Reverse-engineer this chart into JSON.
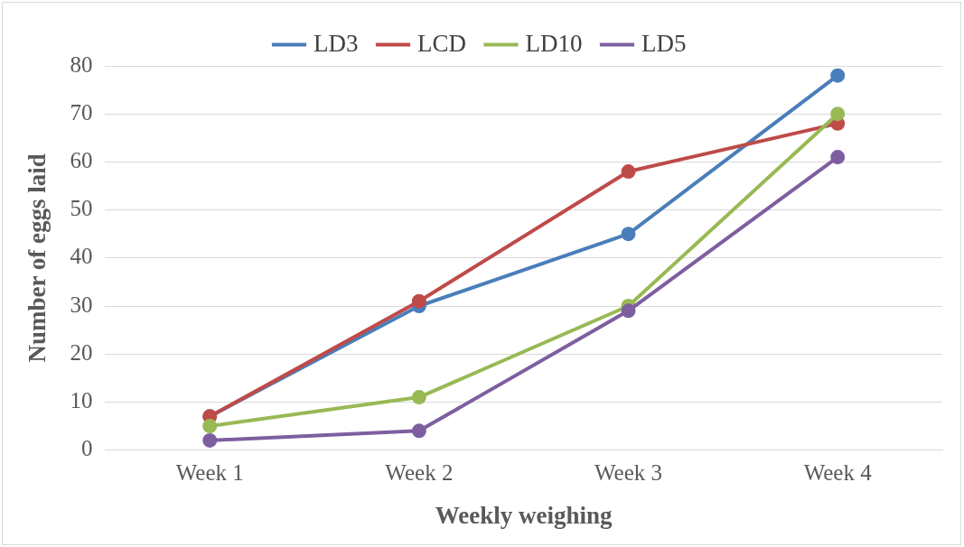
{
  "chart_data": {
    "type": "line",
    "xlabel": "Weekly weighing",
    "ylabel": "Number of eggs laid",
    "categories": [
      "Week 1",
      "Week 2",
      "Week 3",
      "Week 4"
    ],
    "series": [
      {
        "name": "LD3",
        "color": "#4a7ebb",
        "values": [
          7,
          30,
          45,
          78
        ]
      },
      {
        "name": "LCD",
        "color": "#be4b48",
        "values": [
          7,
          31,
          58,
          68
        ]
      },
      {
        "name": "LD10",
        "color": "#98b954",
        "values": [
          5,
          11,
          30,
          70
        ]
      },
      {
        "name": "LD5",
        "color": "#7d5fa0",
        "values": [
          2,
          4,
          29,
          61
        ]
      }
    ],
    "ylim": [
      0,
      80
    ],
    "yticks": [
      0,
      10,
      20,
      30,
      40,
      50,
      60,
      70,
      80
    ],
    "grid": "y",
    "legend": "top",
    "marker": "circle",
    "line_style": "solid"
  }
}
